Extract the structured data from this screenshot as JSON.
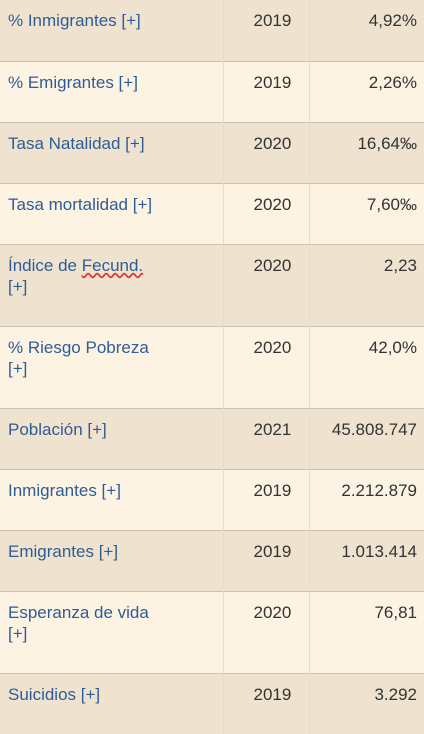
{
  "rows": [
    {
      "label_a": "% Inmigrantes [+]",
      "label_b": "",
      "year": "2019",
      "value": "4,92%"
    },
    {
      "label_a": "% Emigrantes [+]",
      "label_b": "",
      "year": "2019",
      "value": "2,26%"
    },
    {
      "label_a": "Tasa Natalidad [+]",
      "label_b": "",
      "year": "2020",
      "value": "16,64‰"
    },
    {
      "label_a": "Tasa mortalidad [+]",
      "label_b": "",
      "year": "2020",
      "value": "7,60‰"
    },
    {
      "label_a": "Índice de ",
      "label_wavy": "Fecund.",
      "label_b": "[+]",
      "year": "2020",
      "value": "2,23"
    },
    {
      "label_a": "% Riesgo Pobreza",
      "label_b": "[+]",
      "year": "2020",
      "value": "42,0%"
    },
    {
      "label_a": "Población [+]",
      "label_b": "",
      "year": "2021",
      "value": "45.808.747"
    },
    {
      "label_a": "Inmigrantes [+]",
      "label_b": "",
      "year": "2019",
      "value": "2.212.879"
    },
    {
      "label_a": "Emigrantes [+]",
      "label_b": "",
      "year": "2019",
      "value": "1.013.414"
    },
    {
      "label_a": "Esperanza de vida",
      "label_b": "[+]",
      "year": "2020",
      "value": "76,81"
    },
    {
      "label_a": "Suicidios [+]",
      "label_b": "",
      "year": "2019",
      "value": "3.292"
    }
  ]
}
